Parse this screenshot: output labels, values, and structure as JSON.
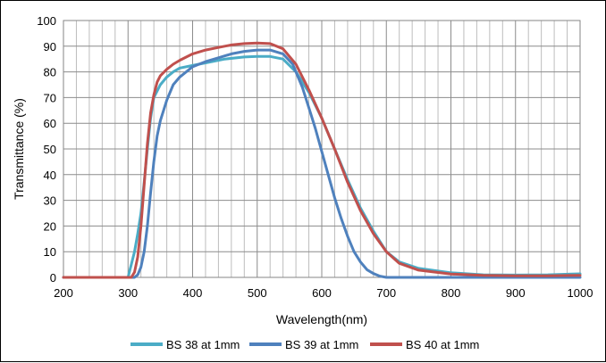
{
  "chart_data": {
    "type": "line",
    "title": "",
    "xlabel": "Wavelength(nm)",
    "ylabel": "Transmittance (%)",
    "xlim": [
      200,
      1000
    ],
    "ylim": [
      0,
      100
    ],
    "x_ticks": [
      200,
      300,
      400,
      500,
      600,
      700,
      800,
      900,
      1000
    ],
    "y_ticks": [
      0,
      10,
      20,
      30,
      40,
      50,
      60,
      70,
      80,
      90,
      100
    ],
    "grid": true,
    "legend_position": "bottom",
    "series": [
      {
        "name": "BS 38 at 1mm",
        "color": "#4bacc6",
        "points": [
          [
            200,
            0
          ],
          [
            300,
            0
          ],
          [
            302,
            2
          ],
          [
            305,
            5
          ],
          [
            310,
            10
          ],
          [
            315,
            17
          ],
          [
            320,
            25
          ],
          [
            325,
            37
          ],
          [
            330,
            50
          ],
          [
            335,
            62
          ],
          [
            340,
            70
          ],
          [
            350,
            75
          ],
          [
            360,
            78
          ],
          [
            370,
            80
          ],
          [
            380,
            81.5
          ],
          [
            400,
            82.5
          ],
          [
            420,
            83.5
          ],
          [
            450,
            85
          ],
          [
            480,
            85.8
          ],
          [
            500,
            86
          ],
          [
            520,
            86
          ],
          [
            540,
            85
          ],
          [
            560,
            80
          ],
          [
            580,
            72
          ],
          [
            600,
            62
          ],
          [
            620,
            50
          ],
          [
            640,
            38
          ],
          [
            660,
            27
          ],
          [
            680,
            18
          ],
          [
            700,
            10
          ],
          [
            720,
            6
          ],
          [
            750,
            3.5
          ],
          [
            800,
            1.8
          ],
          [
            850,
            1
          ],
          [
            900,
            0.9
          ],
          [
            950,
            1
          ],
          [
            1000,
            1.4
          ]
        ]
      },
      {
        "name": "BS 39 at 1mm",
        "color": "#4f81bd",
        "points": [
          [
            200,
            0
          ],
          [
            300,
            0
          ],
          [
            310,
            0
          ],
          [
            315,
            1
          ],
          [
            320,
            4
          ],
          [
            325,
            10
          ],
          [
            330,
            20
          ],
          [
            335,
            33
          ],
          [
            340,
            45
          ],
          [
            345,
            55
          ],
          [
            350,
            61
          ],
          [
            355,
            65
          ],
          [
            360,
            69
          ],
          [
            370,
            75
          ],
          [
            380,
            78
          ],
          [
            400,
            82
          ],
          [
            420,
            84
          ],
          [
            440,
            85.5
          ],
          [
            460,
            87
          ],
          [
            480,
            88
          ],
          [
            500,
            88.5
          ],
          [
            520,
            88.5
          ],
          [
            540,
            87
          ],
          [
            555,
            83
          ],
          [
            570,
            74
          ],
          [
            580,
            66
          ],
          [
            590,
            58
          ],
          [
            600,
            49
          ],
          [
            610,
            40
          ],
          [
            620,
            31
          ],
          [
            630,
            23
          ],
          [
            640,
            16
          ],
          [
            650,
            10
          ],
          [
            660,
            6
          ],
          [
            670,
            3
          ],
          [
            680,
            1.5
          ],
          [
            690,
            0.5
          ],
          [
            700,
            0
          ],
          [
            1000,
            0
          ]
        ]
      },
      {
        "name": "BS 40 at 1mm",
        "color": "#c0504d",
        "points": [
          [
            200,
            0
          ],
          [
            300,
            0
          ],
          [
            305,
            0
          ],
          [
            310,
            2
          ],
          [
            315,
            8
          ],
          [
            320,
            20
          ],
          [
            325,
            36
          ],
          [
            330,
            52
          ],
          [
            335,
            64
          ],
          [
            340,
            71
          ],
          [
            345,
            76
          ],
          [
            350,
            78.5
          ],
          [
            360,
            81
          ],
          [
            370,
            83
          ],
          [
            380,
            84.5
          ],
          [
            400,
            87
          ],
          [
            420,
            88.5
          ],
          [
            440,
            89.5
          ],
          [
            460,
            90.5
          ],
          [
            480,
            91
          ],
          [
            500,
            91.2
          ],
          [
            520,
            91
          ],
          [
            540,
            89
          ],
          [
            560,
            83
          ],
          [
            580,
            73
          ],
          [
            600,
            62
          ],
          [
            620,
            50
          ],
          [
            640,
            37
          ],
          [
            660,
            26
          ],
          [
            680,
            17
          ],
          [
            700,
            10
          ],
          [
            720,
            5.5
          ],
          [
            750,
            2.8
          ],
          [
            800,
            1.3
          ],
          [
            850,
            0.8
          ],
          [
            900,
            0.6
          ],
          [
            950,
            0.6
          ],
          [
            1000,
            0.8
          ]
        ]
      }
    ]
  }
}
